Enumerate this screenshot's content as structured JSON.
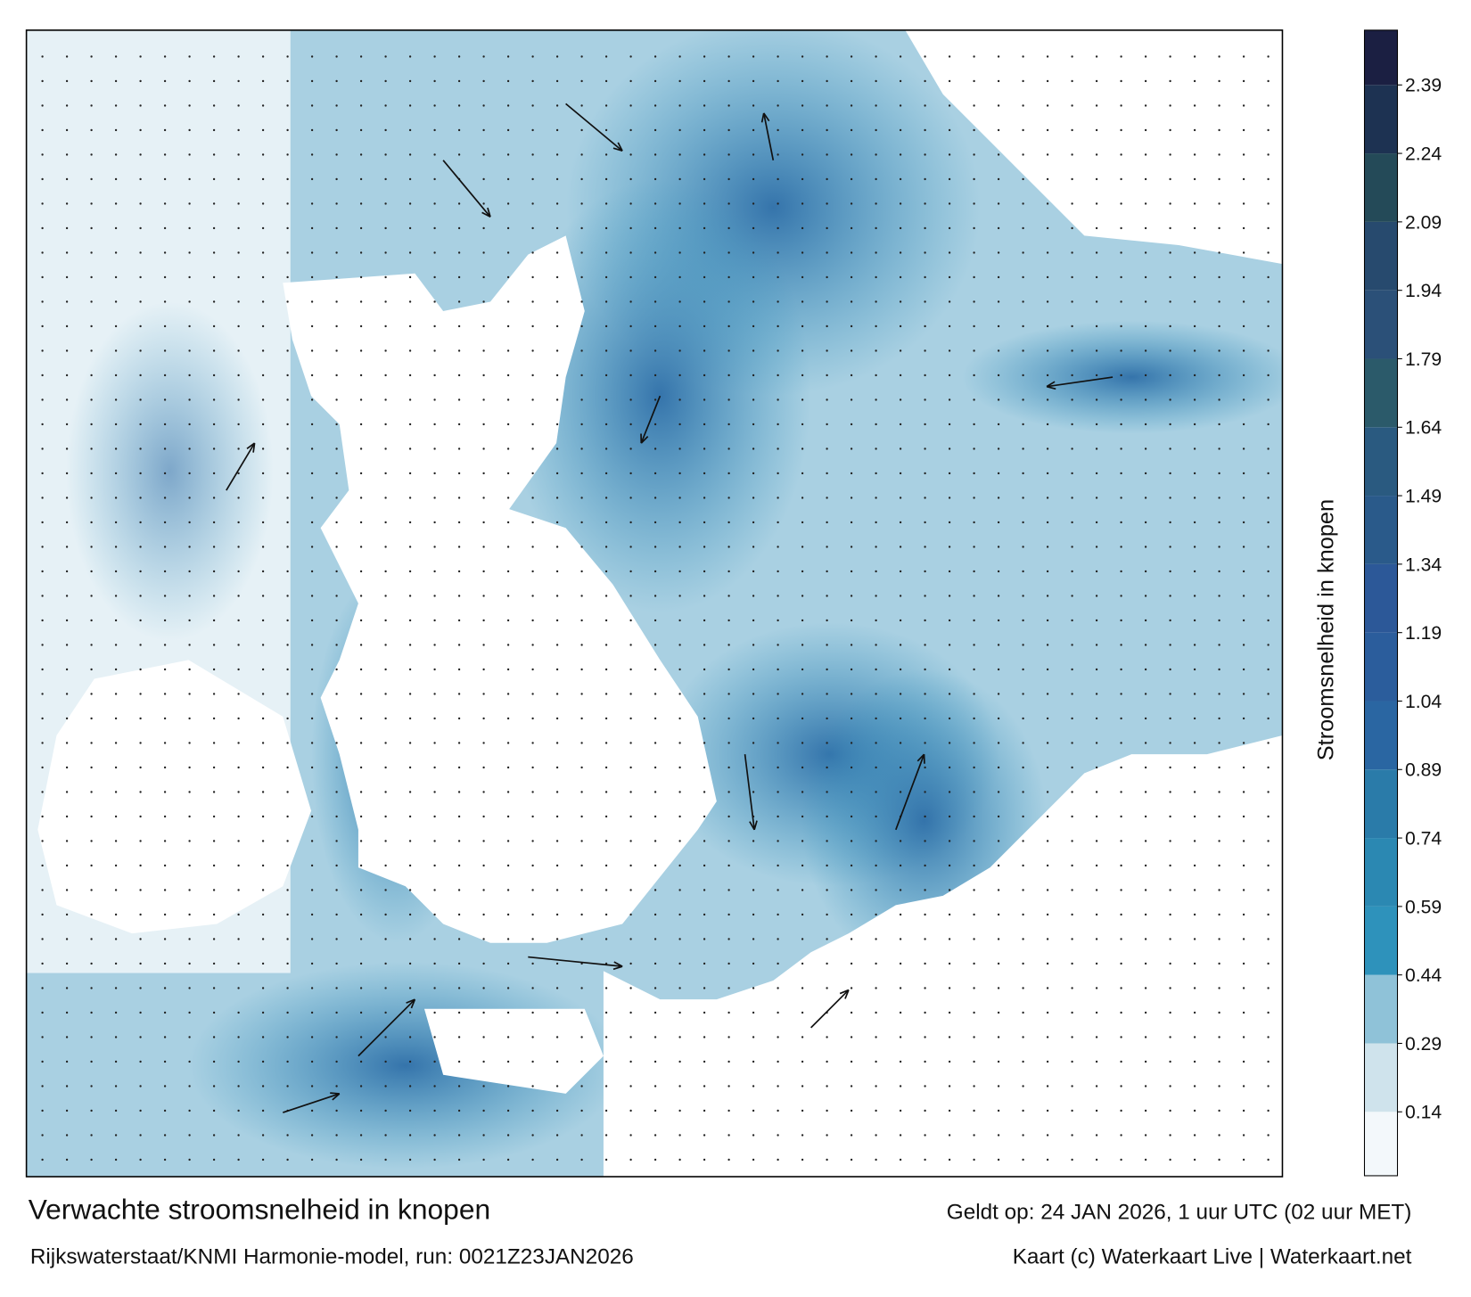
{
  "map": {
    "title": "Verwachte stroomsnelheid in knopen",
    "subtitle": "Rijkswaterstaat/KNMI Harmonie-model, run: 0021Z23JAN2026",
    "valid_time": "Geldt op: 24 JAN 2026, 1 uur UTC (02 uur MET)",
    "credit": "Kaart (c) Waterkaart Live | Waterkaart.net",
    "colorbar": {
      "label": "Stroomsnelheid in knopen",
      "range": [
        0,
        2.51
      ],
      "ticks": [
        0.14,
        0.29,
        0.44,
        0.59,
        0.74,
        0.89,
        1.04,
        1.19,
        1.34,
        1.49,
        1.64,
        1.79,
        1.94,
        2.09,
        2.24,
        2.39
      ],
      "colors": [
        "#f3f8fb",
        "#cfe3ec",
        "#8fc2d8",
        "#2e92bb",
        "#2b88b2",
        "#2a7ba9",
        "#2a66a2",
        "#2b5d9c",
        "#2c5898",
        "#2a5a8a",
        "#2a5a80",
        "#2b5a6a",
        "#2b5078",
        "#274a6e",
        "#244a58",
        "#1d3252",
        "#1b1f42"
      ]
    }
  }
}
